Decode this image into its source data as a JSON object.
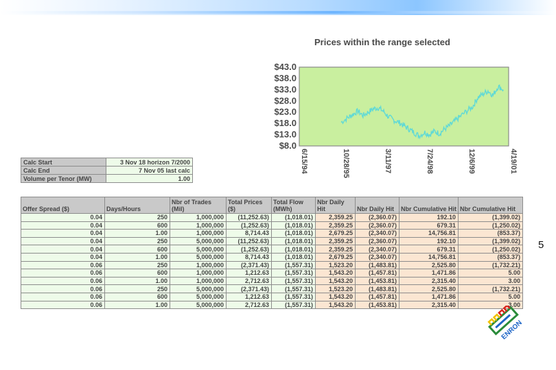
{
  "chart_data": {
    "type": "line",
    "title": "Prices within the range selected",
    "xlabel": "",
    "ylabel": "",
    "y_ticks": [
      "$43.0",
      "$38.0",
      "$33.0",
      "$28.0",
      "$23.0",
      "$18.0",
      "$13.0",
      "$8.0"
    ],
    "ylim": [
      8,
      43
    ],
    "x_ticks": [
      "6/15/94",
      "10/28/95",
      "3/11/97",
      "7/24/98",
      "12/6/99",
      "4/19/01"
    ],
    "xlim": [
      "1994-06-15",
      "2001-04-19"
    ],
    "background_color": "#c9ef9f",
    "line_color": "#60d9d6",
    "series": [
      {
        "x": [
          "1995-10-28",
          "1996-01-15",
          "1996-03-15",
          "1996-05-15",
          "1996-07-15",
          "1996-09-15",
          "1996-11-15",
          "1997-01-15",
          "1997-03-11",
          "1997-05-15",
          "1997-07-15",
          "1997-09-15",
          "1997-11-15",
          "1998-01-15",
          "1998-03-15",
          "1998-05-15",
          "1998-07-24",
          "1998-09-15",
          "1998-11-15",
          "1999-01-15",
          "1999-03-15",
          "1999-05-15",
          "1999-07-15",
          "1999-09-15",
          "1999-12-06",
          "2000-02-15",
          "2000-04-15",
          "2000-06-15",
          "2000-08-15",
          "2000-10-15",
          "2000-12-15",
          "2001-02-15"
        ],
        "values": [
          18.5,
          20.5,
          22.0,
          23.5,
          21.5,
          23.0,
          24.5,
          25.0,
          23.5,
          21.0,
          19.5,
          18.5,
          17.0,
          15.5,
          14.0,
          12.5,
          14.0,
          13.0,
          14.5,
          13.5,
          15.5,
          17.0,
          19.0,
          21.0,
          23.5,
          25.5,
          29.5,
          31.0,
          32.5,
          30.5,
          34.5,
          33.0
        ]
      }
    ]
  },
  "params": {
    "rows": [
      {
        "label": "Calc Start",
        "value": "3 Nov 18 horizon 7/2000"
      },
      {
        "label": "Calc End",
        "value": "7 Nov 05 last calc"
      },
      {
        "label": "Volume per Tenor (MW)",
        "value": "1.00"
      }
    ]
  },
  "table": {
    "headers": [
      "Offer Spread ($)",
      "Days/Hours",
      "Nbr of Trades (Mil)",
      "Total Prices ($)",
      "Total Flow (MWh)",
      "Nbr Daily Hit",
      "Nbr Daily Hit",
      "Nbr Cumulative Hit",
      "Nbr Cumulative Hit"
    ],
    "rows": [
      [
        "0.04",
        "250",
        "1,000,000",
        "(11,252.63)",
        "(1,018.01)",
        "2,359.25",
        "(2,360.07)",
        "192.10",
        "(1,399.02)"
      ],
      [
        "0.04",
        "600",
        "1,000,000",
        "(1,252.63)",
        "(1,018.01)",
        "2,359.25",
        "(2,360.07)",
        "679.31",
        "(1,250.02)"
      ],
      [
        "0.04",
        "1.00",
        "1,000,000",
        "8,714.43",
        "(1,018.01)",
        "2,679.25",
        "(2,340.07)",
        "14,756.81",
        "(853.37)"
      ],
      [
        "0.04",
        "250",
        "5,000,000",
        "(11,252.63)",
        "(1,018.01)",
        "2,359.25",
        "(2,360.07)",
        "192.10",
        "(1,399.02)"
      ],
      [
        "0.04",
        "600",
        "5,000,000",
        "(1,252.63)",
        "(1,018.01)",
        "2,359.25",
        "(2,340.07)",
        "679.31",
        "(1,250.02)"
      ],
      [
        "0.04",
        "1.00",
        "5,000,000",
        "8,714.43",
        "(1,018.01)",
        "2,679.25",
        "(2,340.07)",
        "14,756.81",
        "(853.37)"
      ],
      [
        "0.06",
        "250",
        "1,000,000",
        "(2,371.43)",
        "(1,557.31)",
        "1,523.20",
        "(1,483.81)",
        "2,525.80",
        "(1,732.21)"
      ],
      [
        "0.06",
        "600",
        "1,000,000",
        "1,212.63",
        "(1,557.31)",
        "1,543.20",
        "(1,457.81)",
        "1,471.86",
        "5.00"
      ],
      [
        "0.06",
        "1.00",
        "1,000,000",
        "2,712.63",
        "(1,557.31)",
        "1,543.20",
        "(1,453.81)",
        "2,315.40",
        "3.00"
      ],
      [
        "0.06",
        "250",
        "5,000,000",
        "(2,371.43)",
        "(1,557.31)",
        "1,523.20",
        "(1,483.81)",
        "2,525.80",
        "(1,732.21)"
      ],
      [
        "0.06",
        "600",
        "5,000,000",
        "1,212.63",
        "(1,557.31)",
        "1,543.20",
        "(1,457.81)",
        "1,471.86",
        "5.00"
      ],
      [
        "0.06",
        "1.00",
        "5,000,000",
        "2,712.63",
        "(1,557.31)",
        "1,543.20",
        "(1,453.81)",
        "2,315.40",
        "3.00"
      ]
    ]
  },
  "page_number": "5",
  "logo": {
    "name": "enron-logo",
    "text": "ENRON"
  }
}
